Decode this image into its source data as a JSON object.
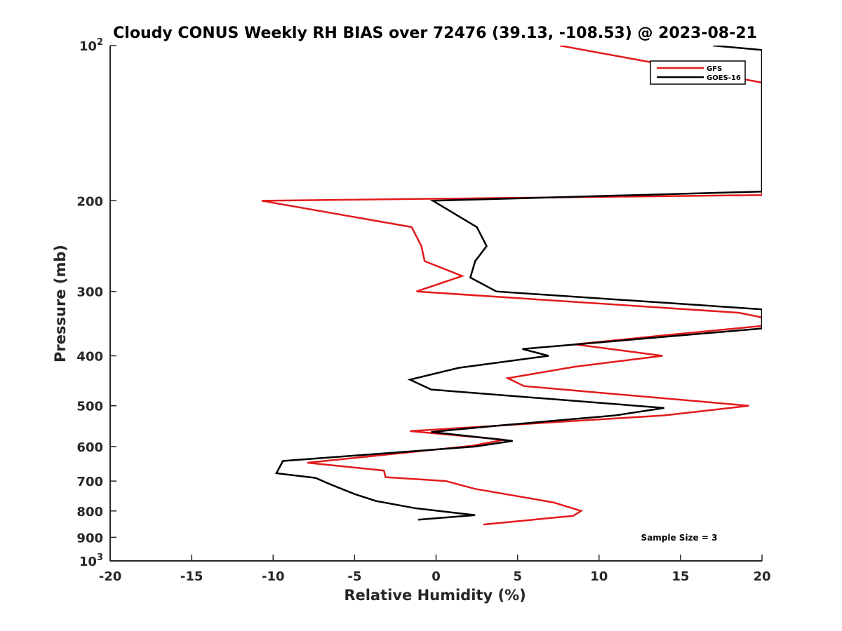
{
  "chart_data": {
    "type": "line",
    "title": "Cloudy CONUS Weekly RH BIAS over 72476 (39.13, -108.53) @ 2023-08-21",
    "xlabel": "Relative Humidity (%)",
    "ylabel": "Pressure (mb)",
    "xlim": [
      -20,
      20
    ],
    "ylim": [
      100,
      1000
    ],
    "y_scale": "log",
    "y_reversed": true,
    "grid": false,
    "legend_position": "top-right",
    "x_ticks": [
      -20,
      -15,
      -10,
      -5,
      0,
      5,
      10,
      15,
      20
    ],
    "y_ticks": [
      {
        "value": 100,
        "base": "10",
        "exp": "2"
      },
      {
        "value": 200,
        "label": "200"
      },
      {
        "value": 300,
        "label": "300"
      },
      {
        "value": 400,
        "label": "400"
      },
      {
        "value": 500,
        "label": "500"
      },
      {
        "value": 600,
        "label": "600"
      },
      {
        "value": 700,
        "label": "700"
      },
      {
        "value": 800,
        "label": "800"
      },
      {
        "value": 900,
        "label": "900"
      },
      {
        "value": 1000,
        "base": "10",
        "exp": "3"
      }
    ],
    "series": [
      {
        "name": "GFS",
        "color": "#e31a1c",
        "points": [
          [
            7.6,
            100
          ],
          [
            20,
            118
          ],
          [
            20,
            195
          ],
          [
            -10.7,
            200
          ],
          [
            -1.5,
            225
          ],
          [
            -0.9,
            245
          ],
          [
            -0.7,
            262
          ],
          [
            1.6,
            280
          ],
          [
            -1.2,
            300
          ],
          [
            18.6,
            330
          ],
          [
            20,
            337
          ],
          [
            20,
            350
          ],
          [
            14,
            365
          ],
          [
            8.5,
            380
          ],
          [
            13.9,
            400
          ],
          [
            8.5,
            420
          ],
          [
            4.4,
            442
          ],
          [
            5.4,
            458
          ],
          [
            19.2,
            500
          ],
          [
            14,
            522
          ],
          [
            -1.6,
            560
          ],
          [
            4.2,
            582
          ],
          [
            2.2,
            598
          ],
          [
            -7.9,
            645
          ],
          [
            -3.2,
            668
          ],
          [
            -3.1,
            688
          ],
          [
            0.6,
            700
          ],
          [
            2.4,
            725
          ],
          [
            7.2,
            770
          ],
          [
            8.9,
            800
          ],
          [
            8.4,
            818
          ],
          [
            7.5,
            823
          ],
          [
            2.9,
            850
          ]
        ]
      },
      {
        "name": "GOES-16",
        "color": "#000000",
        "points": [
          [
            17.0,
            100
          ],
          [
            20,
            102
          ],
          [
            20,
            192
          ],
          [
            -0.2,
            200
          ],
          [
            2.5,
            225
          ],
          [
            3.1,
            245
          ],
          [
            2.4,
            262
          ],
          [
            2.1,
            282
          ],
          [
            3.7,
            300
          ],
          [
            20,
            325
          ],
          [
            20,
            354
          ],
          [
            5.3,
            388
          ],
          [
            6.9,
            400
          ],
          [
            1.4,
            422
          ],
          [
            -1.6,
            445
          ],
          [
            -0.3,
            465
          ],
          [
            14,
            505
          ],
          [
            11,
            522
          ],
          [
            4.2,
            545
          ],
          [
            -0.3,
            562
          ],
          [
            4.7,
            585
          ],
          [
            2.4,
            600
          ],
          [
            -9.4,
            640
          ],
          [
            -9.8,
            676
          ],
          [
            -7.4,
            690
          ],
          [
            -6.5,
            710
          ],
          [
            -5.0,
            742
          ],
          [
            -3.7,
            765
          ],
          [
            -1.3,
            790
          ],
          [
            2.4,
            815
          ],
          [
            -1.1,
            832
          ]
        ]
      }
    ],
    "annotation": "Sample Size = 3"
  }
}
